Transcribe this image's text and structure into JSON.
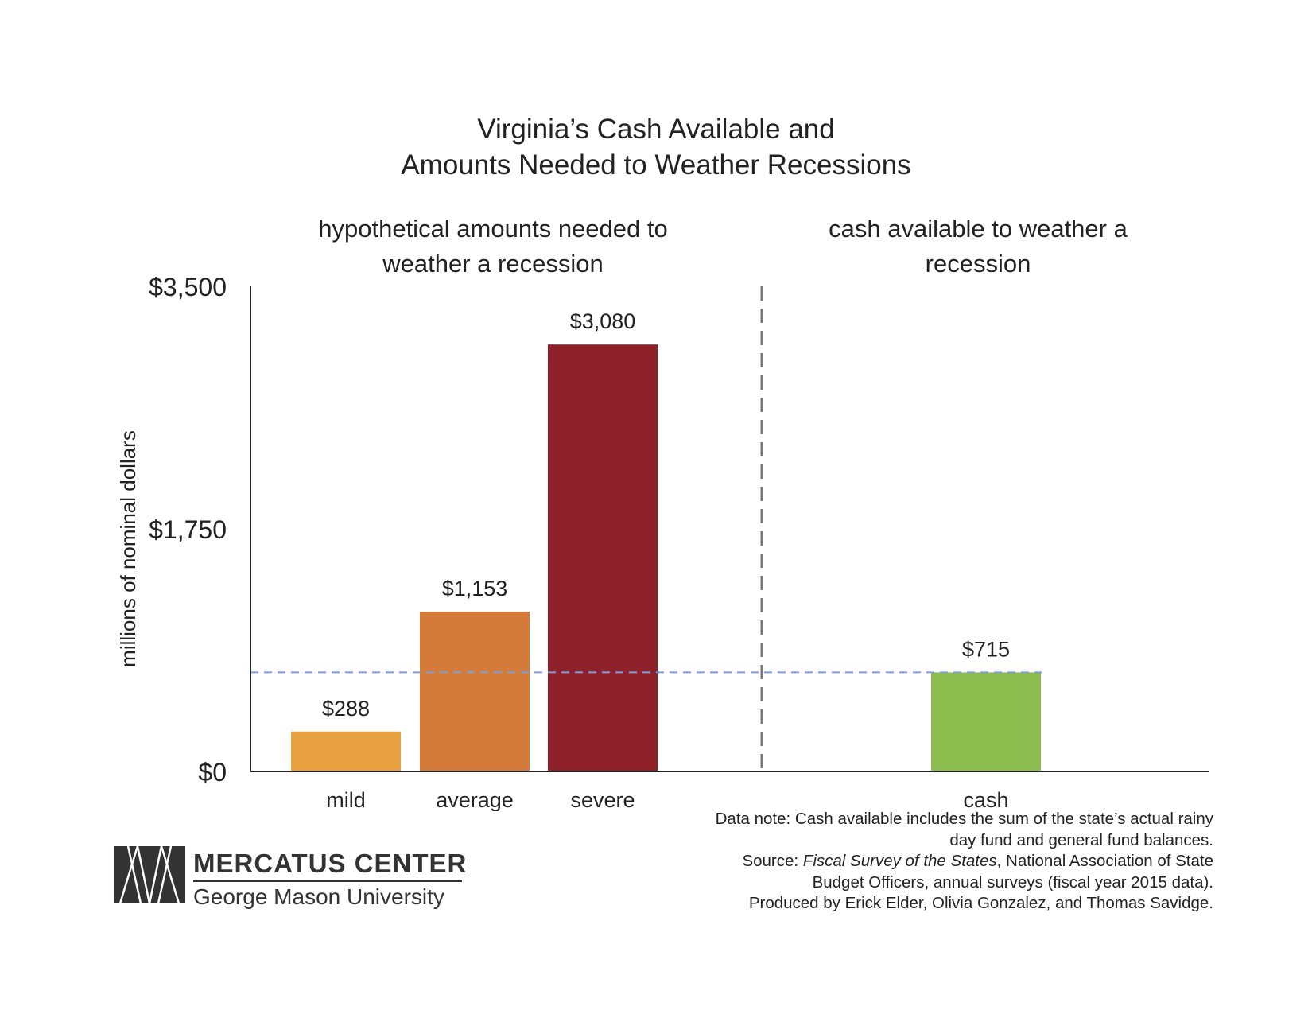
{
  "title_lines": [
    "Virginia’s Cash Available and",
    "Amounts Needed to Weather Recessions"
  ],
  "groups": {
    "needed": [
      "hypothetical amounts needed to",
      "weather a recession"
    ],
    "cash": [
      "cash available to weather a",
      "recession"
    ]
  },
  "chart_data": {
    "type": "bar",
    "categories": [
      "mild",
      "average",
      "severe",
      "cash"
    ],
    "values": [
      288,
      1153,
      3080,
      715
    ],
    "value_labels": [
      "$288",
      "$1,153",
      "$3,080",
      "$715"
    ],
    "colors": [
      "#E8A040",
      "#D47B3A",
      "#8E2129",
      "#8DBD4E"
    ],
    "ylabel": "millions of nominal dollars",
    "ylim": [
      0,
      3500
    ],
    "yticks": [
      0,
      1750,
      3500
    ],
    "ytick_labels": [
      "$0",
      "$1,750",
      "$3,500"
    ],
    "reference_line": {
      "value": 715,
      "color": "#7B9FD6",
      "style": "dashed"
    },
    "group_divider_color": "#777777",
    "grid": false
  },
  "note": {
    "data_note_lines": [
      "Data note: Cash available includes the sum of the state’s actual rainy",
      "day fund and general fund balances."
    ],
    "source_prefix": "Source: ",
    "source_title": "Fiscal Survey of the States",
    "source_rest": ", National Association of State",
    "source_line2": "Budget Officers, annual surveys (fiscal year 2015 data).",
    "produced_by": "Produced by Erick Elder, Olivia Gonzalez, and Thomas Savidge."
  },
  "logo": {
    "name": "MERCATUS CENTER",
    "subtitle": "George Mason University"
  }
}
